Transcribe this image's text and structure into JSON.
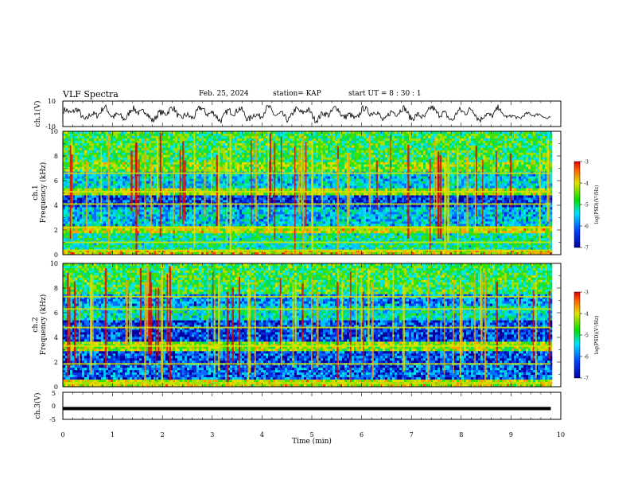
{
  "header": {
    "title": "VLF Spectra",
    "date": "Feb. 25, 2024",
    "station": "station= KAP",
    "start": "start  UT =   8  : 30 : 1"
  },
  "chart_data": [
    {
      "type": "line",
      "ylabel": "ch.1(V)",
      "ylim": [
        -10,
        10
      ],
      "yticks": [
        "10",
        "-10"
      ],
      "description": "waveform trace, values oscillating roughly between -7 and 8 V"
    },
    {
      "type": "heatmap",
      "ylabel_top": "ch.1",
      "ylabel": "Frequency (kHz)",
      "ylim": [
        0,
        10
      ],
      "yticks": [
        "0",
        "2",
        "4",
        "6",
        "8",
        "10"
      ],
      "colorbar": {
        "label": "log(PSD)(V²/Hz)",
        "ticks": [
          "-3",
          "-4",
          "-5",
          "-6",
          "-7"
        ],
        "range": [
          -7,
          -3
        ]
      }
    },
    {
      "type": "heatmap",
      "ylabel_top": "ch.2",
      "ylabel": "Frequency (kHz)",
      "ylim": [
        0,
        10
      ],
      "yticks": [
        "0",
        "2",
        "4",
        "6",
        "8",
        "10"
      ],
      "colorbar": {
        "label": "log(PSD)(V²/Hz)",
        "ticks": [
          "-3",
          "-4",
          "-5",
          "-6",
          "-7"
        ],
        "range": [
          -7,
          -3
        ]
      }
    },
    {
      "type": "line",
      "ylabel": "ch.3(V)",
      "ylim": [
        -5,
        5
      ],
      "yticks": [
        "5",
        "0",
        "-5"
      ],
      "description": "nearly flat thick trace around -1 V"
    }
  ],
  "xaxis": {
    "label": "Time (min)",
    "range": [
      0,
      10
    ],
    "ticks": [
      "0",
      "1",
      "2",
      "3",
      "4",
      "5",
      "6",
      "7",
      "8",
      "9",
      "10"
    ],
    "data_end": 9.8
  },
  "colors": {
    "spectrogram_low": "#0000cc",
    "spectrogram_high": "#cc0000",
    "trace": "#000000"
  }
}
